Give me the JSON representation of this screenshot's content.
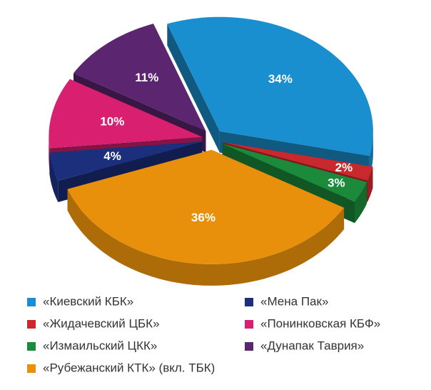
{
  "chart_data": {
    "type": "pie",
    "categories": [
      "«Киевский КБК»",
      "«Жидачевский ЦБК»",
      "«Измаильский ЦКК»",
      "«Рубежанский КТК» (вкл. ТБК)",
      "«Мена Пак»",
      "«Понинковская  КБФ»",
      "«Дунапак Таврия»"
    ],
    "values": [
      34,
      2,
      3,
      36,
      4,
      10,
      11
    ],
    "value_labels": [
      "34%",
      "2%",
      "3%",
      "36%",
      "4%",
      "10%",
      "11%"
    ],
    "colors": [
      "#1a8fd0",
      "#c9282d",
      "#1b8b3b",
      "#e8900c",
      "#1c2f7d",
      "#d81f70",
      "#5b2570"
    ]
  }
}
